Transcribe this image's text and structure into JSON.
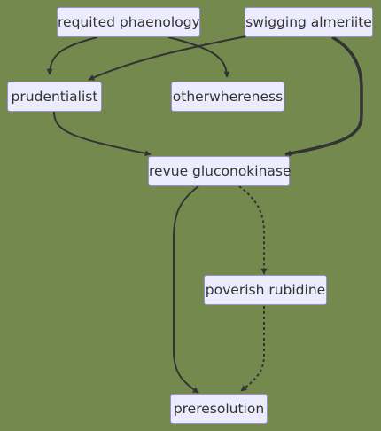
{
  "diagram": {
    "nodes": [
      {
        "id": "n1",
        "label": "requited phaenology"
      },
      {
        "id": "n2",
        "label": "swigging almeriite"
      },
      {
        "id": "n3",
        "label": "prudentialist"
      },
      {
        "id": "n4",
        "label": "otherwhereness"
      },
      {
        "id": "n5",
        "label": "revue gluconokinase"
      },
      {
        "id": "n6",
        "label": "poverish rubidine"
      },
      {
        "id": "n7",
        "label": "preresolution"
      }
    ],
    "edges": [
      {
        "from": "requited phaenology",
        "to": "prudentialist",
        "style": "solid"
      },
      {
        "from": "requited phaenology",
        "to": "otherwhereness",
        "style": "solid"
      },
      {
        "from": "swigging almeriite",
        "to": "prudentialist",
        "style": "solid"
      },
      {
        "from": "swigging almeriite",
        "to": "revue gluconokinase",
        "style": "thick"
      },
      {
        "from": "prudentialist",
        "to": "revue gluconokinase",
        "style": "solid"
      },
      {
        "from": "revue gluconokinase",
        "to": "preresolution",
        "style": "solid"
      },
      {
        "from": "revue gluconokinase",
        "to": "poverish rubidine",
        "style": "dotted"
      },
      {
        "from": "poverish rubidine",
        "to": "preresolution",
        "style": "dotted"
      }
    ],
    "colors": {
      "background": "#73894d",
      "node_fill": "#ececfe",
      "node_border": "#9a8fd0",
      "edge": "#333333",
      "text": "#333333"
    }
  }
}
